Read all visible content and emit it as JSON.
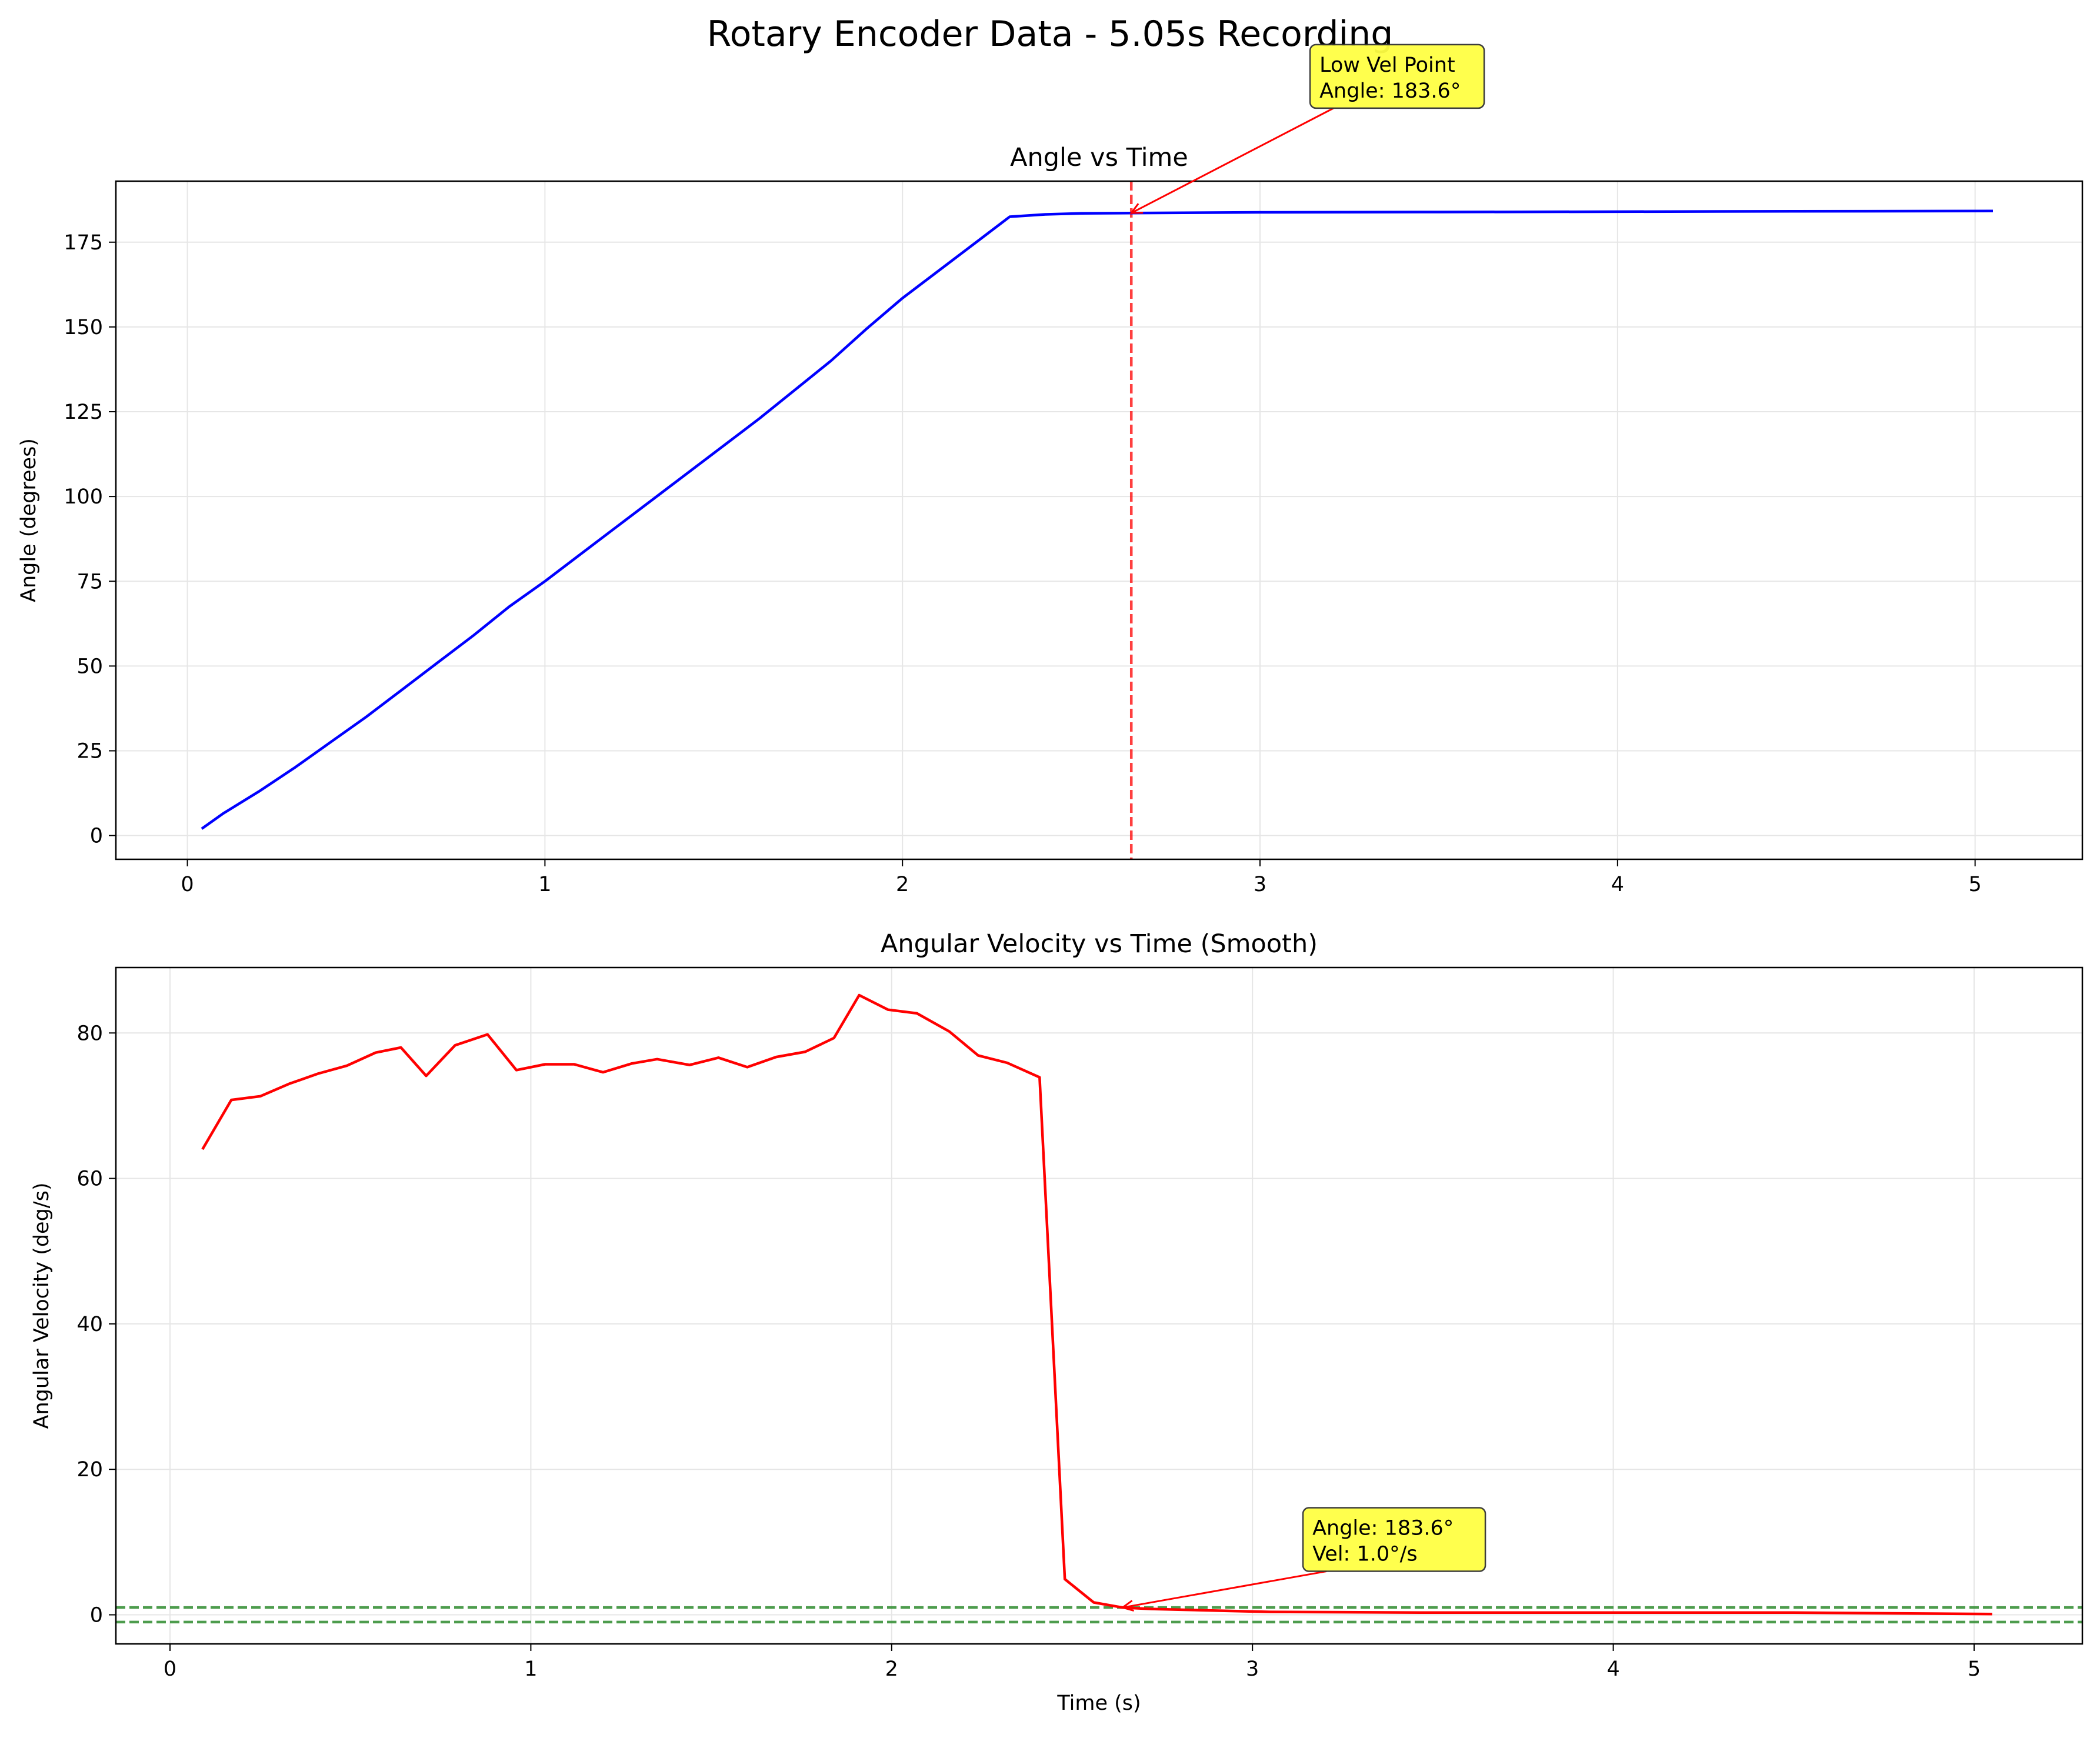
{
  "figure": {
    "title": "Rotary Encoder Data - 5.05s Recording"
  },
  "colors": {
    "angle_line": "#0000ff",
    "velocity_line": "#ff0000",
    "marker_line": "#ff0000",
    "threshold_line": "#3a923a",
    "annotation_fill": "#ffff44",
    "grid": "#e6e6e6"
  },
  "chart_data": [
    {
      "type": "line",
      "title": "Angle vs Time",
      "xlabel": "",
      "ylabel": "Angle (degrees)",
      "xlim": [
        -0.2,
        5.3
      ],
      "ylim": [
        -7,
        193
      ],
      "xticks": [
        0,
        1,
        2,
        3,
        4,
        5
      ],
      "yticks": [
        0,
        25,
        50,
        75,
        100,
        125,
        150,
        175
      ],
      "grid": true,
      "series": [
        {
          "x": [
            0.04,
            0.1,
            0.2,
            0.3,
            0.4,
            0.5,
            0.6,
            0.7,
            0.8,
            0.9,
            1.0,
            1.1,
            1.2,
            1.3,
            1.4,
            1.5,
            1.6,
            1.7,
            1.8,
            1.9,
            2.0,
            2.1,
            2.2,
            2.3,
            2.4,
            2.5,
            2.64,
            3.0,
            3.5,
            4.0,
            4.5,
            5.05
          ],
          "y": [
            2,
            6.5,
            13,
            20,
            27.5,
            35,
            43,
            51,
            59,
            67.5,
            75,
            83,
            91,
            99,
            107,
            115,
            123,
            131.5,
            140,
            149.5,
            158.5,
            166.5,
            174.5,
            182.5,
            183.2,
            183.5,
            183.6,
            183.8,
            183.9,
            184,
            184.1,
            184.2
          ]
        }
      ],
      "annotations": [
        {
          "text": [
            "Low Vel Point",
            "Angle: 183.6°"
          ],
          "point": [
            2.64,
            183.6
          ],
          "text_pos": [
            3.14,
            218
          ]
        }
      ],
      "vertical_line": {
        "x": 2.64
      }
    },
    {
      "type": "line",
      "title": "Angular Velocity vs Time (Smooth)",
      "xlabel": "Time (s)",
      "ylabel": "Angular Velocity (deg/s)",
      "xlim": [
        -0.15,
        5.3
      ],
      "ylim": [
        -4,
        89
      ],
      "xticks": [
        0,
        1,
        2,
        3,
        4,
        5
      ],
      "yticks": [
        0,
        20,
        40,
        60,
        80
      ],
      "grid": true,
      "series": [
        {
          "x": [
            0.09,
            0.17,
            0.25,
            0.33,
            0.41,
            0.49,
            0.57,
            0.64,
            0.71,
            0.79,
            0.88,
            0.96,
            1.04,
            1.12,
            1.2,
            1.28,
            1.35,
            1.44,
            1.52,
            1.6,
            1.68,
            1.76,
            1.84,
            1.91,
            1.99,
            2.07,
            2.16,
            2.24,
            2.32,
            2.41,
            2.48,
            2.56,
            2.64,
            2.72,
            2.88,
            3.05,
            3.5,
            4.0,
            4.5,
            5.05
          ],
          "y": [
            64,
            70.8,
            71.3,
            73,
            74.4,
            75.5,
            77.3,
            78,
            74.1,
            78.3,
            79.8,
            74.9,
            75.7,
            75.7,
            74.6,
            75.8,
            76.4,
            75.6,
            76.6,
            75.3,
            76.7,
            77.4,
            79.3,
            85.2,
            83.2,
            82.7,
            80.2,
            76.9,
            75.9,
            73.9,
            4.9,
            1.7,
            1.0,
            0.8,
            0.6,
            0.4,
            0.3,
            0.3,
            0.3,
            0.1
          ]
        }
      ],
      "threshold_lines": [
        1,
        -1
      ],
      "annotations": [
        {
          "text": [
            "Angle: 183.6°",
            "Vel: 1.0°/s"
          ],
          "point": [
            2.64,
            1.0
          ],
          "text_pos": [
            3.14,
            7.6
          ]
        }
      ]
    }
  ]
}
